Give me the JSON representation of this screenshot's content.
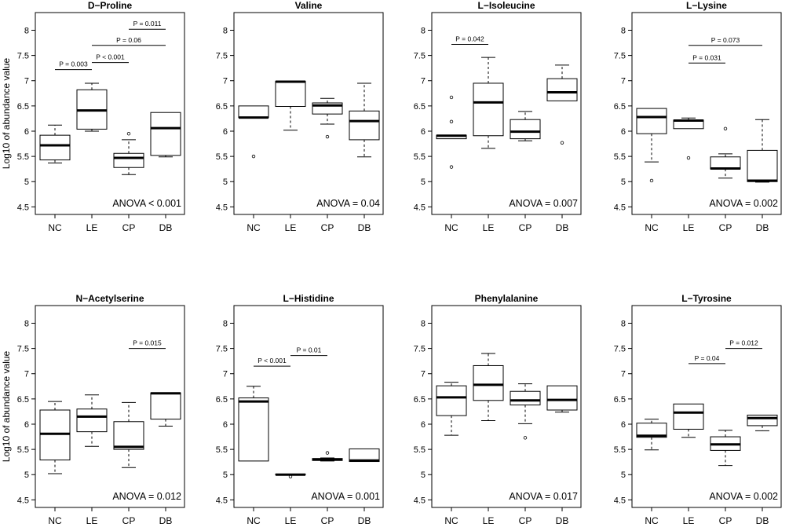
{
  "figure_type": "boxplot-grid",
  "chart_data": [
    {
      "type": "box",
      "title": "D−Proline",
      "ylabel": "Log10 of abundance value",
      "categories": [
        "NC",
        "LE",
        "CP",
        "DB"
      ],
      "ylim": [
        4.35,
        8.35
      ],
      "yticks": [
        "4.5",
        "5",
        "5.5",
        "6",
        "6.5",
        "7",
        "7.5",
        "8"
      ],
      "boxes": [
        {
          "wl": 5.37,
          "q1": 5.43,
          "med": 5.72,
          "q3": 5.92,
          "wh": 6.12,
          "out": []
        },
        {
          "wl": 6.0,
          "q1": 6.04,
          "med": 6.41,
          "q3": 6.82,
          "wh": 6.95,
          "out": []
        },
        {
          "wl": 5.14,
          "q1": 5.28,
          "med": 5.47,
          "q3": 5.56,
          "wh": 5.83,
          "out": [
            5.95
          ]
        },
        {
          "wl": 5.49,
          "q1": 5.52,
          "med": 6.06,
          "q3": 6.37,
          "wh": 6.37,
          "out": []
        }
      ],
      "annotation": "ANOVA < 0.001",
      "comparisons": [
        {
          "from": 0,
          "to": 1,
          "y": 7.22,
          "label": "P = 0.003"
        },
        {
          "from": 1,
          "to": 2,
          "y": 7.36,
          "label": "P < 0.001"
        },
        {
          "from": 1,
          "to": 3,
          "y": 7.7,
          "label": "P = 0.06"
        },
        {
          "from": 2,
          "to": 3,
          "y": 8.02,
          "label": "P = 0.011"
        }
      ]
    },
    {
      "type": "box",
      "title": "Valine",
      "ylabel": "",
      "categories": [
        "NC",
        "LE",
        "CP",
        "DB"
      ],
      "ylim": [
        4.35,
        8.35
      ],
      "yticks": [
        "4.5",
        "5",
        "5.5",
        "6",
        "6.5",
        "7",
        "7.5",
        "8"
      ],
      "boxes": [
        {
          "wl": 6.27,
          "q1": 6.27,
          "med": 6.27,
          "q3": 6.5,
          "wh": 6.5,
          "out": [
            5.5
          ]
        },
        {
          "wl": 6.02,
          "q1": 6.49,
          "med": 6.98,
          "q3": 6.99,
          "wh": 6.99,
          "out": []
        },
        {
          "wl": 6.14,
          "q1": 6.34,
          "med": 6.51,
          "q3": 6.56,
          "wh": 6.65,
          "out": [
            5.89
          ]
        },
        {
          "wl": 5.49,
          "q1": 5.83,
          "med": 6.2,
          "q3": 6.4,
          "wh": 6.95,
          "out": []
        }
      ],
      "annotation": "ANOVA = 0.04",
      "comparisons": []
    },
    {
      "type": "box",
      "title": "L−Isoleucine",
      "ylabel": "",
      "categories": [
        "NC",
        "LE",
        "CP",
        "DB"
      ],
      "ylim": [
        4.35,
        8.35
      ],
      "yticks": [
        "4.5",
        "5",
        "5.5",
        "6",
        "6.5",
        "7",
        "7.5",
        "8"
      ],
      "boxes": [
        {
          "wl": 5.85,
          "q1": 5.85,
          "med": 5.91,
          "q3": 5.92,
          "wh": 5.92,
          "out": [
            5.29,
            6.19,
            6.67
          ]
        },
        {
          "wl": 5.66,
          "q1": 5.91,
          "med": 6.57,
          "q3": 6.95,
          "wh": 7.46,
          "out": []
        },
        {
          "wl": 5.81,
          "q1": 5.85,
          "med": 5.99,
          "q3": 6.23,
          "wh": 6.39,
          "out": []
        },
        {
          "wl": 6.6,
          "q1": 6.6,
          "med": 6.77,
          "q3": 7.04,
          "wh": 7.31,
          "out": [
            5.77
          ]
        }
      ],
      "annotation": "ANOVA = 0.007",
      "comparisons": [
        {
          "from": 0,
          "to": 1,
          "y": 7.72,
          "label": "P = 0.042"
        }
      ]
    },
    {
      "type": "box",
      "title": "L−Lysine",
      "ylabel": "",
      "categories": [
        "NC",
        "LE",
        "CP",
        "DB"
      ],
      "ylim": [
        4.35,
        8.35
      ],
      "yticks": [
        "4.5",
        "5",
        "5.5",
        "6",
        "6.5",
        "7",
        "7.5",
        "8"
      ],
      "boxes": [
        {
          "wl": 5.39,
          "q1": 5.95,
          "med": 6.28,
          "q3": 6.45,
          "wh": 6.45,
          "out": [
            5.02
          ]
        },
        {
          "wl": 6.05,
          "q1": 6.05,
          "med": 6.21,
          "q3": 6.22,
          "wh": 6.26,
          "out": [
            5.47
          ]
        },
        {
          "wl": 5.07,
          "q1": 5.25,
          "med": 5.26,
          "q3": 5.49,
          "wh": 5.55,
          "out": [
            6.05
          ]
        },
        {
          "wl": 4.99,
          "q1": 5.0,
          "med": 5.02,
          "q3": 5.62,
          "wh": 6.23,
          "out": []
        }
      ],
      "annotation": "ANOVA = 0.002",
      "comparisons": [
        {
          "from": 1,
          "to": 2,
          "y": 7.35,
          "label": "P = 0.031"
        },
        {
          "from": 1,
          "to": 3,
          "y": 7.7,
          "label": "P = 0.073"
        }
      ]
    },
    {
      "type": "box",
      "title": "N−Acetylserine",
      "ylabel": "Log10 of abundance value",
      "categories": [
        "NC",
        "LE",
        "CP",
        "DB"
      ],
      "ylim": [
        4.35,
        8.35
      ],
      "yticks": [
        "4.5",
        "5",
        "5.5",
        "6",
        "6.5",
        "7",
        "7.5",
        "8"
      ],
      "boxes": [
        {
          "wl": 5.02,
          "q1": 5.29,
          "med": 5.81,
          "q3": 6.28,
          "wh": 6.45,
          "out": []
        },
        {
          "wl": 5.56,
          "q1": 5.85,
          "med": 6.15,
          "q3": 6.3,
          "wh": 6.58,
          "out": []
        },
        {
          "wl": 5.14,
          "q1": 5.5,
          "med": 5.55,
          "q3": 6.05,
          "wh": 6.43,
          "out": []
        },
        {
          "wl": 5.96,
          "q1": 6.1,
          "med": 6.61,
          "q3": 6.62,
          "wh": 6.62,
          "out": []
        }
      ],
      "annotation": "ANOVA = 0.012",
      "comparisons": [
        {
          "from": 2,
          "to": 3,
          "y": 7.5,
          "label": "P = 0.015"
        }
      ]
    },
    {
      "type": "box",
      "title": "L−Histidine",
      "ylabel": "",
      "categories": [
        "NC",
        "LE",
        "CP",
        "DB"
      ],
      "ylim": [
        4.35,
        8.35
      ],
      "yticks": [
        "4.5",
        "5",
        "5.5",
        "6",
        "6.5",
        "7",
        "7.5",
        "8"
      ],
      "boxes": [
        {
          "wl": 5.27,
          "q1": 5.27,
          "med": 6.45,
          "q3": 6.52,
          "wh": 6.75,
          "out": []
        },
        {
          "wl": 4.99,
          "q1": 5.0,
          "med": 5.0,
          "q3": 5.01,
          "wh": 5.01,
          "out": [
            4.96
          ]
        },
        {
          "wl": 5.27,
          "q1": 5.28,
          "med": 5.3,
          "q3": 5.32,
          "wh": 5.33,
          "out": [
            5.43
          ]
        },
        {
          "wl": 5.26,
          "q1": 5.26,
          "med": 5.28,
          "q3": 5.51,
          "wh": 5.51,
          "out": []
        }
      ],
      "annotation": "ANOVA = 0.001",
      "comparisons": [
        {
          "from": 0,
          "to": 1,
          "y": 7.15,
          "label": "P < 0.001"
        },
        {
          "from": 1,
          "to": 2,
          "y": 7.36,
          "label": "P = 0.01"
        }
      ]
    },
    {
      "type": "box",
      "title": "Phenylalanine",
      "ylabel": "",
      "categories": [
        "NC",
        "LE",
        "CP",
        "DB"
      ],
      "ylim": [
        4.35,
        8.35
      ],
      "yticks": [
        "4.5",
        "5",
        "5.5",
        "6",
        "6.5",
        "7",
        "7.5",
        "8"
      ],
      "boxes": [
        {
          "wl": 5.78,
          "q1": 6.17,
          "med": 6.53,
          "q3": 6.76,
          "wh": 6.83,
          "out": []
        },
        {
          "wl": 6.07,
          "q1": 6.47,
          "med": 6.78,
          "q3": 7.16,
          "wh": 7.4,
          "out": []
        },
        {
          "wl": 6.01,
          "q1": 6.38,
          "med": 6.47,
          "q3": 6.65,
          "wh": 6.8,
          "out": [
            5.73
          ]
        },
        {
          "wl": 6.24,
          "q1": 6.28,
          "med": 6.48,
          "q3": 6.76,
          "wh": 6.76,
          "out": []
        }
      ],
      "annotation": "ANOVA = 0.017",
      "comparisons": []
    },
    {
      "type": "box",
      "title": "L−Tyrosine",
      "ylabel": "",
      "categories": [
        "NC",
        "LE",
        "CP",
        "DB"
      ],
      "ylim": [
        4.35,
        8.35
      ],
      "yticks": [
        "4.5",
        "5",
        "5.5",
        "6",
        "6.5",
        "7",
        "7.5",
        "8"
      ],
      "boxes": [
        {
          "wl": 5.49,
          "q1": 5.74,
          "med": 5.77,
          "q3": 6.02,
          "wh": 6.1,
          "out": []
        },
        {
          "wl": 5.74,
          "q1": 5.9,
          "med": 6.23,
          "q3": 6.4,
          "wh": 6.4,
          "out": []
        },
        {
          "wl": 5.18,
          "q1": 5.48,
          "med": 5.6,
          "q3": 5.75,
          "wh": 5.88,
          "out": []
        },
        {
          "wl": 5.87,
          "q1": 5.97,
          "med": 6.12,
          "q3": 6.18,
          "wh": 6.18,
          "out": []
        }
      ],
      "annotation": "ANOVA = 0.002",
      "comparisons": [
        {
          "from": 1,
          "to": 2,
          "y": 7.2,
          "label": "P = 0.04"
        },
        {
          "from": 2,
          "to": 3,
          "y": 7.5,
          "label": "P = 0.012"
        }
      ]
    }
  ]
}
